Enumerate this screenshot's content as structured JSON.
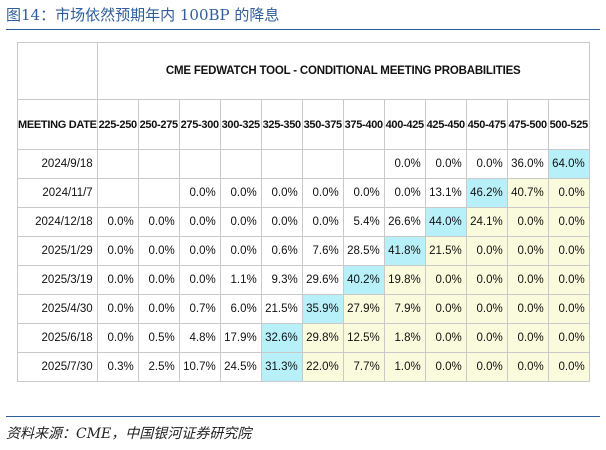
{
  "figure": {
    "title": "图14：市场依然预期年内 100BP 的降息",
    "source": "资料来源：CME，中国银河证券研究院"
  },
  "table": {
    "super_header": "CME FEDWATCH TOOL - CONDITIONAL MEETING PROBABILITIES",
    "date_header": "MEETING DATE",
    "columns": [
      "225-250",
      "250-275",
      "275-300",
      "300-325",
      "325-350",
      "350-375",
      "375-400",
      "400-425",
      "425-450",
      "450-475",
      "475-500",
      "500-525"
    ],
    "rows": [
      {
        "date": "2024/9/18",
        "values": [
          "",
          "",
          "",
          "",
          "",
          "",
          "",
          "0.0%",
          "0.0%",
          "0.0%",
          "36.0%",
          "64.0%"
        ],
        "highlight": 11
      },
      {
        "date": "2024/11/7",
        "values": [
          "",
          "",
          "0.0%",
          "0.0%",
          "0.0%",
          "0.0%",
          "0.0%",
          "0.0%",
          "13.1%",
          "46.2%",
          "40.7%",
          "0.0%"
        ],
        "highlight": 9
      },
      {
        "date": "2024/12/18",
        "values": [
          "0.0%",
          "0.0%",
          "0.0%",
          "0.0%",
          "0.0%",
          "0.0%",
          "5.4%",
          "26.6%",
          "44.0%",
          "24.1%",
          "0.0%",
          "0.0%"
        ],
        "highlight": 8
      },
      {
        "date": "2025/1/29",
        "values": [
          "0.0%",
          "0.0%",
          "0.0%",
          "0.0%",
          "0.6%",
          "7.6%",
          "28.5%",
          "41.8%",
          "21.5%",
          "0.0%",
          "0.0%",
          "0.0%"
        ],
        "highlight": 7
      },
      {
        "date": "2025/3/19",
        "values": [
          "0.0%",
          "0.0%",
          "0.0%",
          "1.1%",
          "9.3%",
          "29.6%",
          "40.2%",
          "19.8%",
          "0.0%",
          "0.0%",
          "0.0%",
          "0.0%"
        ],
        "highlight": 6
      },
      {
        "date": "2025/4/30",
        "values": [
          "0.0%",
          "0.0%",
          "0.7%",
          "6.0%",
          "21.5%",
          "35.9%",
          "27.9%",
          "7.9%",
          "0.0%",
          "0.0%",
          "0.0%",
          "0.0%"
        ],
        "highlight": 5
      },
      {
        "date": "2025/6/18",
        "values": [
          "0.0%",
          "0.5%",
          "4.8%",
          "17.9%",
          "32.6%",
          "29.8%",
          "12.5%",
          "1.8%",
          "0.0%",
          "0.0%",
          "0.0%",
          "0.0%"
        ],
        "highlight": 4
      },
      {
        "date": "2025/7/30",
        "values": [
          "0.3%",
          "2.5%",
          "10.7%",
          "24.5%",
          "31.3%",
          "22.0%",
          "7.7%",
          "1.0%",
          "0.0%",
          "0.0%",
          "0.0%",
          "0.0%"
        ],
        "highlight": 4
      }
    ],
    "colors": {
      "highlight": "#b8f0fa",
      "shaded": "#fafadc",
      "border": "#c9c9c9"
    }
  }
}
